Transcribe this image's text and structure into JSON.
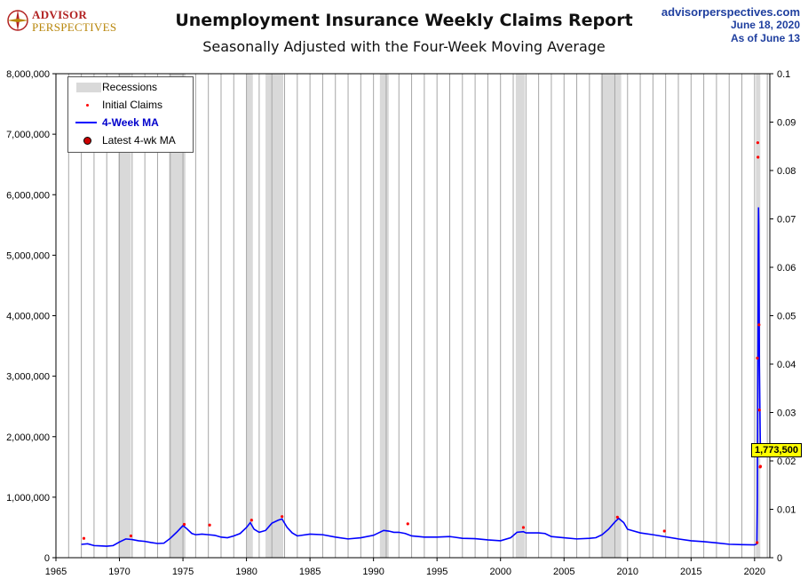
{
  "logo": {
    "line1": "ADVISOR",
    "line2": "PERSPECTIVES"
  },
  "header": {
    "title": "Unemployment Insurance Weekly Claims Report",
    "subtitle": "Seasonally Adjusted with the Four-Week Moving Average",
    "site": "advisorperspectives.com",
    "date": "June 18, 2020",
    "as_of": "As of June 13"
  },
  "legend": {
    "recessions": "Recessions",
    "initial_claims": "Initial Claims",
    "ma": "4-Week MA",
    "latest": "Latest 4-wk MA"
  },
  "callout": {
    "value_label": "1,773,500"
  },
  "colors": {
    "ma": "#0000ff",
    "claims": "#ff0000",
    "recession": "#d9d9d9",
    "latest": "#cc0000",
    "callout": "#ffff00"
  },
  "chart_data": {
    "type": "line",
    "title": "Unemployment Insurance Weekly Claims Report",
    "subtitle": "Seasonally Adjusted with the Four-Week Moving Average",
    "x_ticks": [
      "1965",
      "1970",
      "1975",
      "1980",
      "1985",
      "1990",
      "1995",
      "2000",
      "2005",
      "2010",
      "2015",
      "2020"
    ],
    "xlim": [
      1965,
      2021.2
    ],
    "y_left_ticks": [
      "0",
      "1,000,000",
      "2,000,000",
      "3,000,000",
      "4,000,000",
      "5,000,000",
      "6,000,000",
      "7,000,000",
      "8,000,000"
    ],
    "ylim": [
      0,
      8000000
    ],
    "y_right_ticks": [
      "0",
      "0.01",
      "0.02",
      "0.03",
      "0.04",
      "0.05",
      "0.06",
      "0.07",
      "0.08",
      "0.09",
      "0.1"
    ],
    "y_right_lim": [
      0,
      0.1
    ],
    "grid": "vertical",
    "legend_position": "top-left",
    "recessions": [
      [
        1969.9,
        1970.9
      ],
      [
        1973.9,
        1975.2
      ],
      [
        1980.0,
        1980.5
      ],
      [
        1981.5,
        1982.9
      ],
      [
        1990.5,
        1991.2
      ],
      [
        2001.2,
        2001.9
      ],
      [
        2007.9,
        2009.5
      ],
      [
        2020.1,
        2020.45
      ]
    ],
    "series": [
      {
        "name": "4-Week MA",
        "x": [
          1967.0,
          1967.5,
          1968.0,
          1968.5,
          1969.0,
          1969.5,
          1970.0,
          1970.5,
          1971.0,
          1971.5,
          1972.0,
          1972.5,
          1973.0,
          1973.5,
          1974.0,
          1974.5,
          1975.0,
          1975.3,
          1975.7,
          1976.0,
          1976.5,
          1977.0,
          1977.5,
          1978.0,
          1978.5,
          1979.0,
          1979.5,
          1980.0,
          1980.3,
          1980.6,
          1981.0,
          1981.5,
          1982.0,
          1982.5,
          1982.8,
          1983.2,
          1983.6,
          1984.0,
          1985.0,
          1986.0,
          1987.0,
          1988.0,
          1989.0,
          1990.0,
          1990.8,
          1991.2,
          1991.6,
          1992.0,
          1992.5,
          1993.0,
          1994.0,
          1995.0,
          1996.0,
          1997.0,
          1998.0,
          1999.0,
          2000.0,
          2000.8,
          2001.3,
          2001.8,
          2002.0,
          2003.0,
          2003.5,
          2004.0,
          2005.0,
          2006.0,
          2007.0,
          2007.5,
          2008.0,
          2008.5,
          2009.0,
          2009.3,
          2009.7,
          2010.0,
          2011.0,
          2012.0,
          2013.0,
          2014.0,
          2015.0,
          2016.0,
          2017.0,
          2018.0,
          2019.0,
          2020.0,
          2020.18,
          2020.22,
          2020.25,
          2020.27,
          2020.29,
          2020.31,
          2020.33,
          2020.36,
          2020.38,
          2020.41,
          2020.44,
          2020.46
        ],
        "values": [
          220000,
          230000,
          200000,
          195000,
          190000,
          200000,
          260000,
          310000,
          300000,
          280000,
          270000,
          250000,
          235000,
          240000,
          320000,
          420000,
          530000,
          480000,
          400000,
          380000,
          390000,
          380000,
          370000,
          340000,
          330000,
          360000,
          400000,
          500000,
          580000,
          470000,
          420000,
          450000,
          570000,
          620000,
          640000,
          500000,
          410000,
          360000,
          390000,
          380000,
          340000,
          310000,
          330000,
          370000,
          450000,
          440000,
          420000,
          420000,
          400000,
          360000,
          340000,
          340000,
          350000,
          320000,
          315000,
          295000,
          280000,
          330000,
          420000,
          430000,
          410000,
          410000,
          400000,
          350000,
          330000,
          310000,
          320000,
          330000,
          380000,
          470000,
          590000,
          650000,
          580000,
          470000,
          410000,
          380000,
          345000,
          310000,
          280000,
          265000,
          245000,
          222000,
          215000,
          212000,
          230000,
          990000,
          2660000,
          3830000,
          5030000,
          5790000,
          5490000,
          4200000,
          3170000,
          2610000,
          2070000,
          1773500
        ]
      },
      {
        "name": "Initial Claims",
        "x": [
          1967.2,
          1970.9,
          1975.1,
          1977.1,
          1980.4,
          1982.8,
          1992.7,
          2001.8,
          2009.2,
          2012.9,
          2020.2,
          2020.22,
          2020.25,
          2020.27,
          2020.35,
          2020.38,
          2020.44,
          2020.46
        ],
        "values": [
          320000,
          360000,
          550000,
          540000,
          620000,
          680000,
          560000,
          500000,
          670000,
          440000,
          250000,
          3300000,
          6860000,
          6620000,
          3850000,
          2440000,
          1500000,
          1510000
        ]
      }
    ],
    "latest": {
      "x": 2020.46,
      "y": 1773500,
      "label": "1,773,500"
    }
  }
}
